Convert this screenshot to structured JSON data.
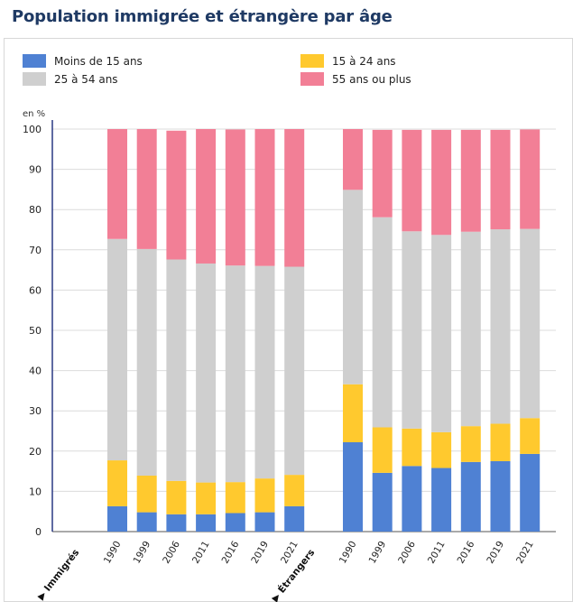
{
  "title": "Population immigrée et étrangère par âge",
  "legend": [
    {
      "label": "Moins de 15 ans",
      "color": "#4f81d3"
    },
    {
      "label": "15 à 24 ans",
      "color": "#ffc92e"
    },
    {
      "label": "25 à 54 ans",
      "color": "#cfcfcf"
    },
    {
      "label": "55 ans ou plus",
      "color": "#f27f96"
    }
  ],
  "chart_data": {
    "type": "bar",
    "stacked": true,
    "ylabel": "en %",
    "ylim": [
      0,
      100
    ],
    "yticks": [
      0,
      10,
      20,
      30,
      40,
      50,
      60,
      70,
      80,
      90,
      100
    ],
    "grid": true,
    "legend_position": "top",
    "groups": [
      {
        "label": "Immigrés",
        "categories": [
          "1990",
          "1999",
          "2006",
          "2011",
          "2016",
          "2019",
          "2021"
        ]
      },
      {
        "label": "Étrangers",
        "categories": [
          "1990",
          "1999",
          "2006",
          "2011",
          "2016",
          "2019",
          "2021"
        ]
      }
    ],
    "series": [
      {
        "name": "Moins de 15 ans",
        "color": "#4f81d3",
        "values": [
          6.3,
          4.8,
          4.3,
          4.3,
          4.6,
          4.8,
          6.3,
          22.2,
          14.6,
          16.3,
          15.8,
          17.3,
          17.5,
          19.3
        ]
      },
      {
        "name": "15 à 24 ans",
        "color": "#ffc92e",
        "values": [
          11.4,
          9.1,
          8.3,
          7.9,
          7.7,
          8.4,
          7.8,
          14.4,
          11.3,
          9.3,
          8.9,
          8.9,
          9.3,
          8.9
        ]
      },
      {
        "name": "25 à 54 ans",
        "color": "#cfcfcf",
        "values": [
          55.0,
          56.3,
          55.0,
          54.4,
          53.8,
          52.8,
          51.7,
          48.3,
          52.2,
          49.0,
          49.0,
          48.3,
          48.3,
          47.0
        ]
      },
      {
        "name": "55 ans ou plus",
        "color": "#f27f96",
        "values": [
          27.3,
          29.8,
          32.0,
          33.4,
          33.8,
          34.0,
          34.2,
          15.1,
          21.7,
          25.2,
          26.1,
          25.3,
          24.7,
          24.7
        ]
      }
    ]
  }
}
